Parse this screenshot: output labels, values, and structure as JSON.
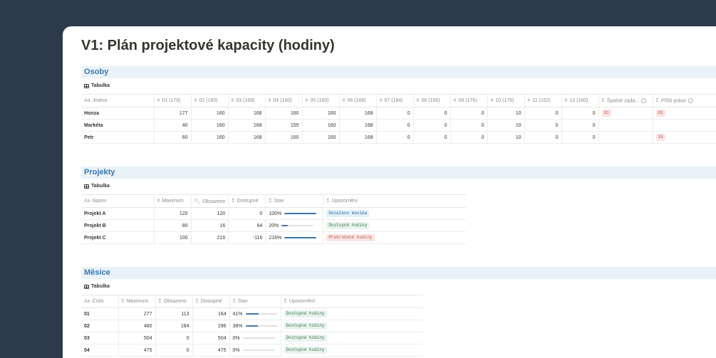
{
  "page": {
    "title": "V1: Plán projektové kapacity (hodiny)"
  },
  "osoby": {
    "title": "Osoby",
    "view": "Tabulka",
    "columns": [
      "Jméno",
      "01 (176)",
      "02 (160)",
      "03 (168)",
      "04 (160)",
      "05 (160)",
      "06 (168)",
      "07 (184)",
      "08 (168)",
      "09 (176)",
      "10 (176)",
      "11 (152)",
      "12 (160)",
      "Špatné zada...",
      "Příliš práce"
    ],
    "rows": [
      {
        "name": "Honza",
        "values": [
          "177",
          "160",
          "168",
          "160",
          "160",
          "168",
          "0",
          "0",
          "0",
          "10",
          "0",
          "0"
        ],
        "spatne": "81",
        "prilis": "82"
      },
      {
        "name": "Markéta",
        "values": [
          "40",
          "160",
          "168",
          "155",
          "160",
          "168",
          "0",
          "0",
          "0",
          "10",
          "0",
          "0"
        ],
        "spatne": "",
        "prilis": ""
      },
      {
        "name": "Petr",
        "values": [
          "60",
          "160",
          "168",
          "160",
          "160",
          "168",
          "0",
          "0",
          "0",
          "10",
          "0",
          "0"
        ],
        "spatne": "",
        "prilis": "16"
      }
    ]
  },
  "projekty": {
    "title": "Projekty",
    "view": "Tabulka",
    "columns": [
      "Název",
      "Maximum",
      "Obsazeno",
      "Dostupné",
      "Stav",
      "Upozornění"
    ],
    "rows": [
      {
        "name": "Projekt A",
        "maximum": "120",
        "obsazeno": "120",
        "dostupne": "0",
        "stav": "100%",
        "stav_frac": 1.0,
        "upozorneni": "Dosaženo maxima",
        "tone": "blue"
      },
      {
        "name": "Projekt B",
        "maximum": "80",
        "obsazeno": "16",
        "dostupne": "64",
        "stav": "20%",
        "stav_frac": 0.2,
        "upozorneni": "Dostupné hodiny",
        "tone": "green"
      },
      {
        "name": "Projekt C",
        "maximum": "100",
        "obsazeno": "216",
        "dostupne": "-116",
        "stav": "216%",
        "stav_frac": 1.0,
        "upozorneni": "Překročené hodiny",
        "tone": "red"
      }
    ]
  },
  "mesice": {
    "title": "Měsíce",
    "view": "Tabulka",
    "columns": [
      "Číslo",
      "Maximum",
      "Obsazeno",
      "Dostupné",
      "Stav",
      "Upozornění"
    ],
    "rows": [
      {
        "name": "01",
        "maximum": "277",
        "obsazeno": "113",
        "dostupne": "164",
        "stav": "41%",
        "stav_frac": 0.41,
        "upozorneni": "Dostupné hodiny"
      },
      {
        "name": "02",
        "maximum": "480",
        "obsazeno": "184",
        "dostupne": "296",
        "stav": "38%",
        "stav_frac": 0.38,
        "upozorneni": "Dostupné hodiny"
      },
      {
        "name": "03",
        "maximum": "504",
        "obsazeno": "0",
        "dostupne": "504",
        "stav": "0%",
        "stav_frac": 0,
        "upozorneni": "Dostupné hodiny"
      },
      {
        "name": "04",
        "maximum": "475",
        "obsazeno": "0",
        "dostupne": "475",
        "stav": "0%",
        "stav_frac": 0,
        "upozorneni": "Dostupné hodiny"
      }
    ]
  },
  "colors": {
    "background": "#2d3a4c",
    "accent": "#3b77ab",
    "section_header": "#e9f2f9"
  }
}
